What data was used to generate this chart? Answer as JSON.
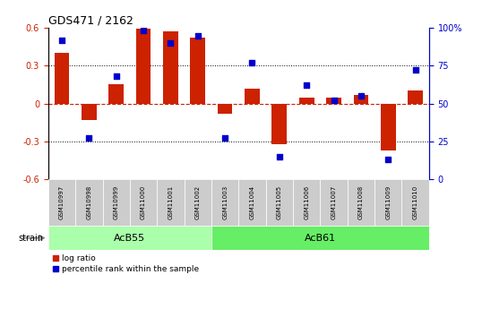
{
  "title": "GDS471 / 2162",
  "samples": [
    "GSM10997",
    "GSM10998",
    "GSM10999",
    "GSM11000",
    "GSM11001",
    "GSM11002",
    "GSM11003",
    "GSM11004",
    "GSM11005",
    "GSM11006",
    "GSM11007",
    "GSM11008",
    "GSM11009",
    "GSM11010"
  ],
  "log_ratio": [
    0.4,
    -0.13,
    0.15,
    0.59,
    0.57,
    0.52,
    -0.08,
    0.12,
    -0.32,
    0.05,
    0.05,
    0.07,
    -0.37,
    0.1
  ],
  "percentile": [
    92,
    27,
    68,
    98,
    90,
    95,
    27,
    77,
    15,
    62,
    52,
    55,
    13,
    72
  ],
  "groups": [
    {
      "label": "AcB55",
      "start": 0,
      "end": 6,
      "color": "#aaffaa"
    },
    {
      "label": "AcB61",
      "start": 6,
      "end": 14,
      "color": "#66ee66"
    }
  ],
  "group_label": "strain",
  "ylim_left": [
    -0.6,
    0.6
  ],
  "ylim_right": [
    0,
    100
  ],
  "yticks_left": [
    -0.6,
    -0.3,
    0.0,
    0.3,
    0.6
  ],
  "yticks_right": [
    0,
    25,
    50,
    75,
    100
  ],
  "bar_color": "#cc2200",
  "scatter_color": "#0000cc",
  "bar_width": 0.55,
  "background_color": "#ffffff",
  "sample_box_color": "#cccccc",
  "strain_arrow_color": "#888888"
}
